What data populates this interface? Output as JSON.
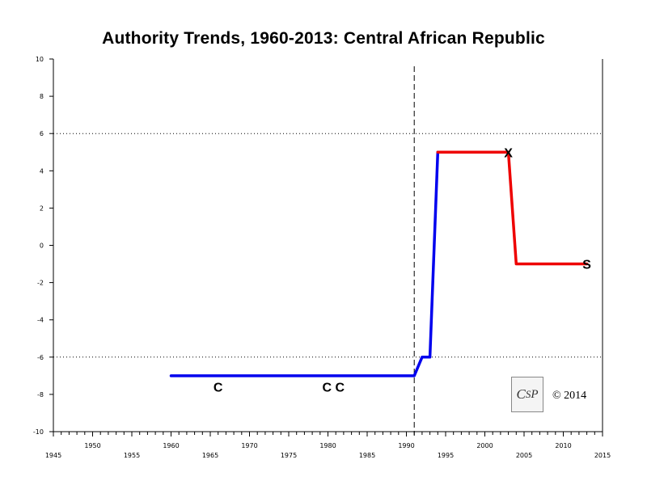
{
  "chart_data": {
    "type": "line",
    "title": "Authority Trends, 1960-2013: Central African Republic",
    "xlabel": "",
    "ylabel": "",
    "xlim": [
      1945,
      2015
    ],
    "ylim": [
      -10,
      10
    ],
    "x_major_ticks": [
      1945,
      1950,
      1955,
      1960,
      1965,
      1970,
      1975,
      1980,
      1985,
      1990,
      1995,
      2000,
      2005,
      2010,
      2015
    ],
    "y_ticks": [
      10,
      8,
      6,
      4,
      2,
      0,
      -2,
      -4,
      -6,
      -8,
      -10
    ],
    "reference_lines": {
      "horizontal_dotted": [
        6,
        -6
      ],
      "vertical_dashed": 1991
    },
    "grid": false,
    "series": [
      {
        "color": "#0000ee",
        "points": [
          [
            1960,
            -7
          ],
          [
            1991,
            -7
          ],
          [
            1992,
            -6
          ],
          [
            1993,
            -6
          ],
          [
            1994,
            5
          ]
        ]
      },
      {
        "color": "#ee0000",
        "points": [
          [
            1994,
            5
          ],
          [
            2003,
            5
          ],
          [
            2004,
            -1
          ],
          [
            2013,
            -1
          ]
        ]
      }
    ],
    "annotations": [
      {
        "text": "C",
        "x": 1966,
        "y": -7.6
      },
      {
        "text": "C C",
        "x": 1980.7,
        "y": -7.6
      },
      {
        "text": "X",
        "x": 2003,
        "y": 5
      },
      {
        "text": "S",
        "x": 2013,
        "y": -1
      }
    ]
  },
  "copyright": "© 2014",
  "logo_text": "CSP"
}
